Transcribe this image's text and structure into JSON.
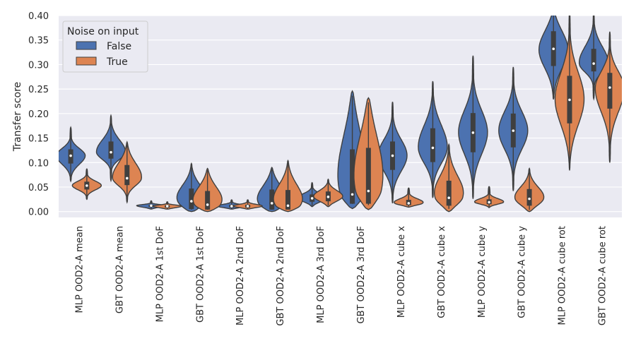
{
  "chart_data": {
    "type": "violin",
    "ylabel": "Transfer score",
    "xlabel": "",
    "ylim": [
      -0.012,
      0.4
    ],
    "yticks": [
      0.0,
      0.05,
      0.1,
      0.15,
      0.2,
      0.25,
      0.3,
      0.35,
      0.4
    ],
    "grid": true,
    "legend": {
      "title": "Noise on input",
      "position": "top-left"
    },
    "categories": [
      "MLP  OOD2-A mean",
      "GBT  OOD2-A mean",
      "MLP  OOD2-A 1st DoF",
      "GBT  OOD2-A 1st DoF",
      "MLP  OOD2-A 2nd DoF",
      "GBT  OOD2-A 2nd DoF",
      "MLP  OOD2-A 3rd DoF",
      "GBT  OOD2-A 3rd DoF",
      "MLP  OOD2-A cube x",
      "GBT  OOD2-A cube x",
      "MLP  OOD2-A cube y",
      "GBT  OOD2-A cube y",
      "MLP  OOD2-A cube rot",
      "GBT  OOD2-A cube rot"
    ],
    "series": [
      {
        "name": "False",
        "color": "#4c72b0",
        "values": [
          {
            "min": 0.062,
            "q1": 0.098,
            "median": 0.114,
            "q3": 0.127,
            "max": 0.172
          },
          {
            "min": 0.063,
            "q1": 0.108,
            "median": 0.121,
            "q3": 0.143,
            "max": 0.196
          },
          {
            "min": 0.005,
            "q1": 0.009,
            "median": 0.012,
            "q3": 0.014,
            "max": 0.022
          },
          {
            "min": 0.0,
            "q1": 0.005,
            "median": 0.021,
            "q3": 0.047,
            "max": 0.098
          },
          {
            "min": 0.005,
            "q1": 0.008,
            "median": 0.011,
            "q3": 0.014,
            "max": 0.024
          },
          {
            "min": 0.0,
            "q1": 0.004,
            "median": 0.017,
            "q3": 0.045,
            "max": 0.09
          },
          {
            "min": 0.01,
            "q1": 0.02,
            "median": 0.027,
            "q3": 0.035,
            "max": 0.059
          },
          {
            "min": 0.006,
            "q1": 0.016,
            "median": 0.035,
            "q3": 0.127,
            "max": 0.246
          },
          {
            "min": 0.017,
            "q1": 0.085,
            "median": 0.114,
            "q3": 0.143,
            "max": 0.224
          },
          {
            "min": 0.028,
            "q1": 0.101,
            "median": 0.13,
            "q3": 0.17,
            "max": 0.266
          },
          {
            "min": 0.026,
            "q1": 0.121,
            "median": 0.161,
            "q3": 0.201,
            "max": 0.318
          },
          {
            "min": 0.042,
            "q1": 0.131,
            "median": 0.165,
            "q3": 0.2,
            "max": 0.295
          },
          {
            "min": 0.229,
            "q1": 0.297,
            "median": 0.332,
            "q3": 0.368,
            "max": 0.41
          },
          {
            "min": 0.23,
            "q1": 0.286,
            "median": 0.302,
            "q3": 0.332,
            "max": 0.405
          }
        ]
      },
      {
        "name": "True",
        "color": "#dd8452",
        "values": [
          {
            "min": 0.025,
            "q1": 0.045,
            "median": 0.053,
            "q3": 0.061,
            "max": 0.087
          },
          {
            "min": 0.019,
            "q1": 0.054,
            "median": 0.068,
            "q3": 0.095,
            "max": 0.142
          },
          {
            "min": 0.005,
            "q1": 0.008,
            "median": 0.011,
            "q3": 0.013,
            "max": 0.02
          },
          {
            "min": 0.0,
            "q1": 0.004,
            "median": 0.014,
            "q3": 0.042,
            "max": 0.088
          },
          {
            "min": 0.005,
            "q1": 0.008,
            "median": 0.011,
            "q3": 0.014,
            "max": 0.024
          },
          {
            "min": 0.0,
            "q1": 0.004,
            "median": 0.012,
            "q3": 0.044,
            "max": 0.104
          },
          {
            "min": 0.01,
            "q1": 0.021,
            "median": 0.03,
            "q3": 0.041,
            "max": 0.066
          },
          {
            "min": 0.004,
            "q1": 0.016,
            "median": 0.042,
            "q3": 0.13,
            "max": 0.232
          },
          {
            "min": 0.009,
            "q1": 0.013,
            "median": 0.017,
            "q3": 0.024,
            "max": 0.048
          },
          {
            "min": 0.0,
            "q1": 0.012,
            "median": 0.028,
            "q3": 0.063,
            "max": 0.137
          },
          {
            "min": 0.008,
            "q1": 0.015,
            "median": 0.019,
            "q3": 0.025,
            "max": 0.051
          },
          {
            "min": 0.0,
            "q1": 0.012,
            "median": 0.026,
            "q3": 0.046,
            "max": 0.088
          },
          {
            "min": 0.084,
            "q1": 0.18,
            "median": 0.228,
            "q3": 0.277,
            "max": 0.41
          },
          {
            "min": 0.1,
            "q1": 0.21,
            "median": 0.253,
            "q3": 0.283,
            "max": 0.367
          }
        ]
      }
    ]
  }
}
